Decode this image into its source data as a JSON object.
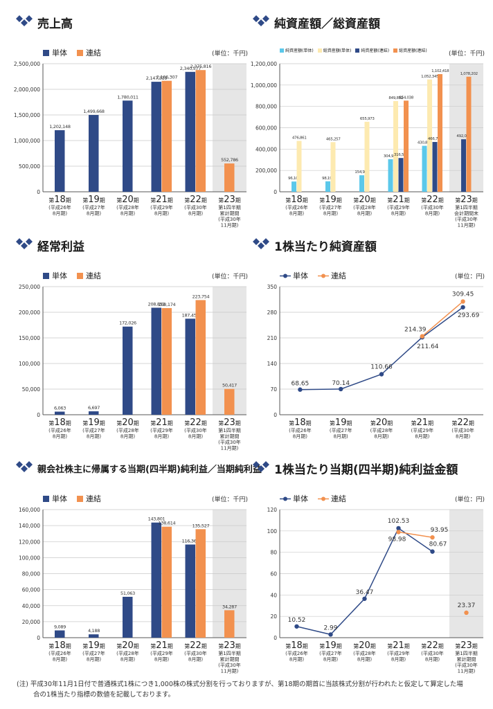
{
  "colors": {
    "tantai": "#2f4a87",
    "renketsu": "#f2914f",
    "naka_tantai": "#5bc8ea",
    "naka_renketsu": "#fdeab0",
    "title_icon": "#2f4a87",
    "shade": "#e6e6e6"
  },
  "legend": {
    "tantai": "単体",
    "renketsu": "連結"
  },
  "unit_thousand": "(単位：千円)",
  "unit_yen": "(単位：円)",
  "note": {
    "line1": "(注) 平成30年11月1日付で普通株式1株につき1,000株の株式分割を行っておりますが、第18期の期首に当該株式分割が行われたと仮定して算定した場",
    "line2": "合の1株当たり指標の数値を記載しております。"
  },
  "chart_data": [
    {
      "id": "sales",
      "type": "bar",
      "title": "売上高",
      "categories": [
        {
          "main": "第18期",
          "sub": [
            "(平成26年",
            "8月期)"
          ]
        },
        {
          "main": "第19期",
          "sub": [
            "(平成27年",
            "8月期)"
          ]
        },
        {
          "main": "第20期",
          "sub": [
            "(平成28年",
            "8月期)"
          ]
        },
        {
          "main": "第21期",
          "sub": [
            "(平成29年",
            "8月期)"
          ]
        },
        {
          "main": "第22期",
          "sub": [
            "(平成30年",
            "8月期)"
          ]
        },
        {
          "main": "第23期",
          "sub": [
            "第1四半期",
            "累計期間",
            "(平成30年",
            "11月期)"
          ]
        }
      ],
      "series": [
        {
          "name": "単体",
          "values": [
            1202148,
            1499668,
            1780011,
            2147319,
            2340577,
            null
          ],
          "labels": [
            "1,202,148",
            "1,499,668",
            "1,780,011",
            "2,147,319",
            "2,340,577",
            ""
          ]
        },
        {
          "name": "連結",
          "values": [
            null,
            null,
            null,
            2166307,
            2375816,
            552786
          ],
          "labels": [
            "",
            "",
            "",
            "2,166,307",
            "2,375,816",
            "552,786"
          ]
        }
      ],
      "ylim": [
        0,
        2500000
      ],
      "ticks": [
        "0",
        "500,000",
        "1,000,000",
        "1,500,000",
        "2,000,000",
        "2,500,000"
      ]
    },
    {
      "id": "assets",
      "type": "bar",
      "title": "純資産額／総資産額",
      "series_names": [
        "純資産額(単体)",
        "総資産額(単体)",
        "純資産額(連結)",
        "総資産額(連結)"
      ],
      "categories": [
        {
          "main": "第18期",
          "sub": [
            "(平成26年",
            "8月期)"
          ]
        },
        {
          "main": "第19期",
          "sub": [
            "(平成27年",
            "8月期)"
          ]
        },
        {
          "main": "第20期",
          "sub": [
            "(平成28年",
            "8月期)"
          ]
        },
        {
          "main": "第21期",
          "sub": [
            "(平成29年",
            "8月期)"
          ]
        },
        {
          "main": "第22期",
          "sub": [
            "(平成30年",
            "8月期)"
          ]
        },
        {
          "main": "第23期",
          "sub": [
            "第1四半期",
            "会計期間末",
            "(平成30年",
            "11月期)"
          ]
        }
      ],
      "series": [
        {
          "name": "純資産額(単体)",
          "values": [
            96107,
            98195,
            154917,
            304977,
            430837,
            null
          ],
          "labels": [
            "96,107",
            "98,195",
            "154,917",
            "304,977",
            "430,837",
            ""
          ]
        },
        {
          "name": "総資産額(単体)",
          "values": [
            476861,
            465257,
            655973,
            849852,
            1052345,
            null
          ],
          "labels": [
            "476,861",
            "465,257",
            "655,973",
            "849,852",
            "1,052,345",
            ""
          ]
        },
        {
          "name": "純資産額(連結)",
          "values": [
            null,
            null,
            null,
            316584,
            466797,
            492065
          ],
          "labels": [
            "",
            "",
            "",
            "316,584",
            "466,797",
            "492,065"
          ]
        },
        {
          "name": "総資産額(連結)",
          "values": [
            null,
            null,
            null,
            854038,
            1102418,
            1078202
          ],
          "labels": [
            "",
            "",
            "",
            "854,038",
            "1,102,418",
            "1,078,202"
          ]
        }
      ],
      "ylim": [
        0,
        1200000
      ],
      "ticks": [
        "0",
        "200,000",
        "400,000",
        "600,000",
        "800,000",
        "1,000,000",
        "1,200,000"
      ]
    },
    {
      "id": "ordinary",
      "type": "bar",
      "title": "経常利益",
      "categories": [
        {
          "main": "第18期",
          "sub": [
            "(平成26年",
            "8月期)"
          ]
        },
        {
          "main": "第19期",
          "sub": [
            "(平成27年",
            "8月期)"
          ]
        },
        {
          "main": "第20期",
          "sub": [
            "(平成28年",
            "8月期)"
          ]
        },
        {
          "main": "第21期",
          "sub": [
            "(平成29年",
            "8月期)"
          ]
        },
        {
          "main": "第22期",
          "sub": [
            "(平成30年",
            "8月期)"
          ]
        },
        {
          "main": "第23期",
          "sub": [
            "第1四半期",
            "累計期間",
            "(平成30年",
            "11月期)"
          ]
        }
      ],
      "series": [
        {
          "name": "単体",
          "values": [
            6063,
            6697,
            172026,
            208852,
            187456,
            null
          ],
          "labels": [
            "6,063",
            "6,697",
            "172,026",
            "208,852",
            "187,456",
            ""
          ]
        },
        {
          "name": "連結",
          "values": [
            null,
            null,
            null,
            208174,
            223754,
            50417
          ],
          "labels": [
            "",
            "",
            "",
            "208,174",
            "223,754",
            "50,417"
          ]
        }
      ],
      "ylim": [
        0,
        250000
      ],
      "ticks": [
        "0",
        "50,000",
        "100,000",
        "150,000",
        "200,000",
        "250,000"
      ]
    },
    {
      "id": "bps",
      "type": "line",
      "title": "1株当たり純資産額",
      "categories": [
        {
          "main": "第18期",
          "sub": [
            "(平成26年",
            "8月期)"
          ]
        },
        {
          "main": "第19期",
          "sub": [
            "(平成27年",
            "8月期)"
          ]
        },
        {
          "main": "第20期",
          "sub": [
            "(平成28年",
            "8月期)"
          ]
        },
        {
          "main": "第21期",
          "sub": [
            "(平成29年",
            "8月期)"
          ]
        },
        {
          "main": "第22期",
          "sub": [
            "(平成30年",
            "8月期)"
          ]
        }
      ],
      "series": [
        {
          "name": "単体",
          "values": [
            68.65,
            70.14,
            110.66,
            211.64,
            293.69
          ],
          "labels": [
            "68.65",
            "70.14",
            "110.66",
            "211.64",
            "293.69"
          ]
        },
        {
          "name": "連結",
          "values": [
            null,
            null,
            null,
            214.39,
            309.45
          ],
          "labels": [
            "",
            "",
            "",
            "214.39",
            "309.45"
          ]
        }
      ],
      "ylim": [
        0,
        350
      ],
      "ticks": [
        "0",
        "70",
        "140",
        "210",
        "280",
        "350"
      ]
    },
    {
      "id": "netincome",
      "type": "bar",
      "title": "親会社株主に帰属する当期(四半期)純利益／当期純利益",
      "categories": [
        {
          "main": "第18期",
          "sub": [
            "(平成26年",
            "8月期)"
          ]
        },
        {
          "main": "第19期",
          "sub": [
            "(平成27年",
            "8月期)"
          ]
        },
        {
          "main": "第20期",
          "sub": [
            "(平成28年",
            "8月期)"
          ]
        },
        {
          "main": "第21期",
          "sub": [
            "(平成29年",
            "8月期)"
          ]
        },
        {
          "main": "第22期",
          "sub": [
            "(平成30年",
            "8月期)"
          ]
        },
        {
          "main": "第23期",
          "sub": [
            "第1四半期",
            "累計期間",
            "(平成30年",
            "11月期)"
          ]
        }
      ],
      "series": [
        {
          "name": "単体",
          "values": [
            9089,
            4188,
            51063,
            143801,
            116365,
            null
          ],
          "labels": [
            "9,089",
            "4,188",
            "51,063",
            "143,801",
            "116,365",
            ""
          ]
        },
        {
          "name": "連結",
          "values": [
            null,
            null,
            null,
            138614,
            135527,
            34287
          ],
          "labels": [
            "",
            "",
            "",
            "138,614",
            "135,527",
            "34,287"
          ]
        }
      ],
      "ylim": [
        0,
        160000
      ],
      "ticks": [
        "0",
        "20,000",
        "40,000",
        "60,000",
        "80,000",
        "100,000",
        "120,000",
        "140,000",
        "160,000"
      ]
    },
    {
      "id": "eps",
      "type": "line",
      "title": "1株当たり当期(四半期)純利益金額",
      "categories": [
        {
          "main": "第18期",
          "sub": [
            "(平成26年",
            "8月期)"
          ]
        },
        {
          "main": "第19期",
          "sub": [
            "(平成27年",
            "8月期)"
          ]
        },
        {
          "main": "第20期",
          "sub": [
            "(平成28年",
            "8月期)"
          ]
        },
        {
          "main": "第21期",
          "sub": [
            "(平成29年",
            "8月期)"
          ]
        },
        {
          "main": "第22期",
          "sub": [
            "(平成30年",
            "8月期)"
          ]
        },
        {
          "main": "第23期",
          "sub": [
            "第1四半期",
            "累計期間",
            "(平成30年",
            "11月期)"
          ]
        }
      ],
      "series": [
        {
          "name": "単体",
          "values": [
            10.52,
            2.99,
            36.47,
            102.53,
            80.67,
            null
          ],
          "labels": [
            "10.52",
            "2.99",
            "36.47",
            "102.53",
            "80.67",
            ""
          ]
        },
        {
          "name": "連結",
          "values": [
            null,
            null,
            null,
            98.98,
            93.95,
            23.37
          ],
          "labels": [
            "",
            "",
            "",
            "98.98",
            "93.95",
            "23.37"
          ]
        }
      ],
      "ylim": [
        0,
        120
      ],
      "ticks": [
        "0",
        "20",
        "40",
        "60",
        "80",
        "100",
        "120"
      ]
    }
  ]
}
